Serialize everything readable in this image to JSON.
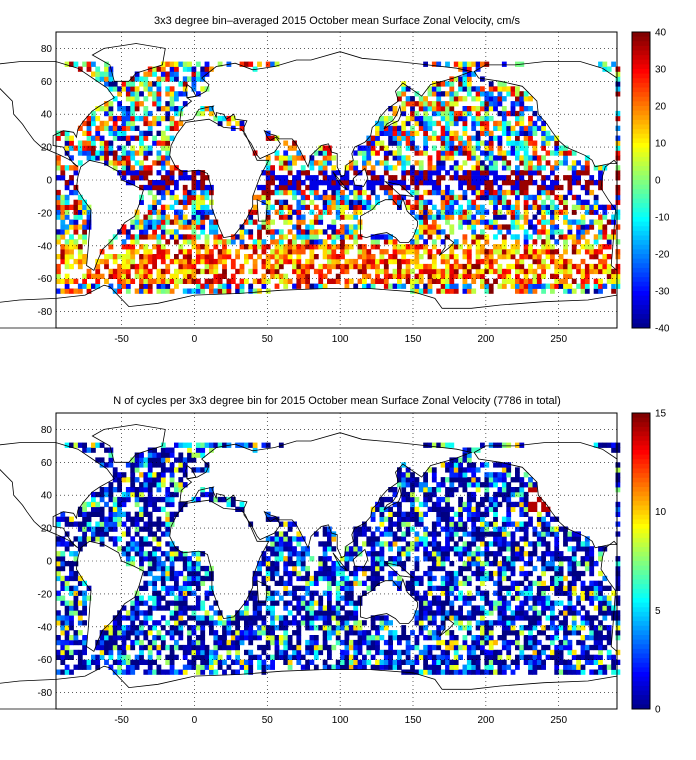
{
  "panels": [
    {
      "title": "3x3 degree bin–averaged 2015 October mean Surface Zonal Velocity, cm/s",
      "xticks": [
        -50,
        0,
        50,
        100,
        150,
        200,
        250
      ],
      "yticks": [
        80,
        60,
        40,
        20,
        0,
        -20,
        -40,
        -60,
        -80
      ],
      "colorbar_ticks": [
        40,
        30,
        20,
        10,
        0,
        -10,
        -20,
        -30,
        -40
      ],
      "colorbar_range": [
        -40,
        40
      ]
    },
    {
      "title": "N of cycles per 3x3 degree bin for 2015 October mean Surface Zonal Velocity (7786 in total)",
      "xticks": [
        -50,
        0,
        50,
        100,
        150,
        200,
        250
      ],
      "yticks": [
        80,
        60,
        40,
        20,
        0,
        -20,
        -40,
        -60,
        -80
      ],
      "colorbar_ticks": [
        15,
        10,
        5,
        0
      ],
      "colorbar_range": [
        0,
        15
      ]
    }
  ],
  "map": {
    "lon_range": [
      -95,
      290
    ],
    "lat_range": [
      -90,
      90
    ],
    "bin_size_deg": 3,
    "colormap": "jet",
    "grid": "dotted"
  }
}
